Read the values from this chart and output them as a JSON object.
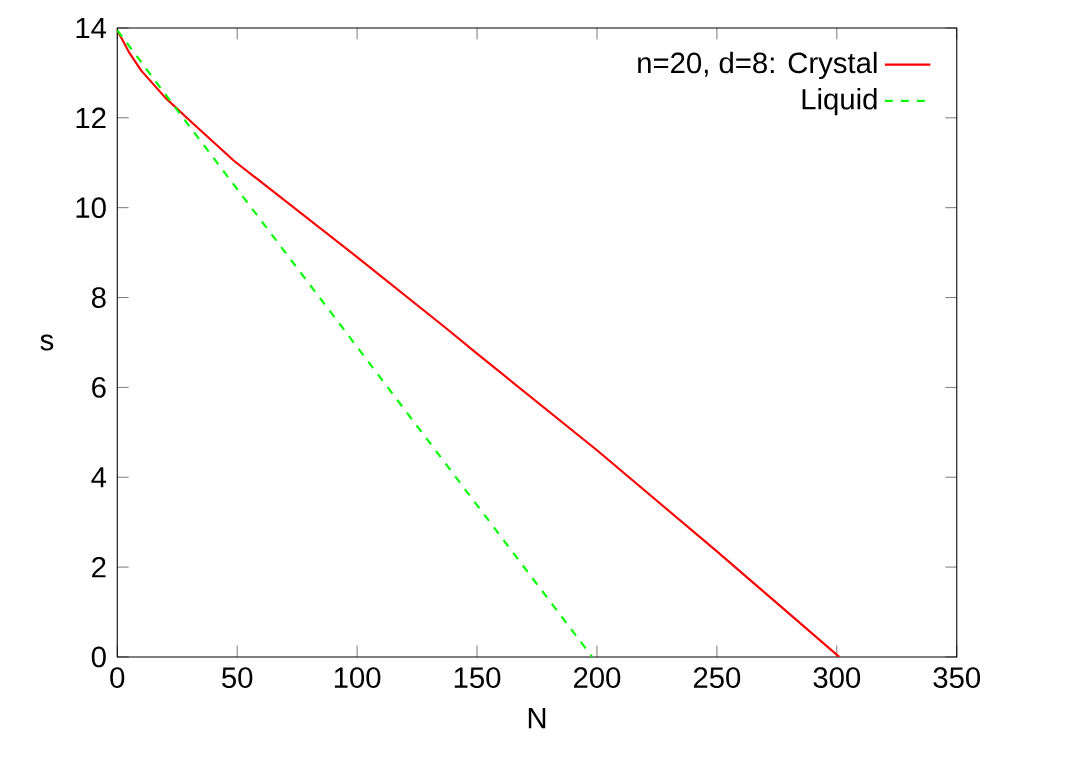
{
  "chart_data": {
    "type": "line",
    "xlabel": "N",
    "ylabel": "s",
    "xlim": [
      0,
      350
    ],
    "ylim": [
      0,
      14
    ],
    "xticks": [
      0,
      50,
      100,
      150,
      200,
      250,
      300,
      350
    ],
    "yticks": [
      0,
      2,
      4,
      6,
      8,
      10,
      12,
      14
    ],
    "grid": false,
    "legend": "top right",
    "marker": "none",
    "series": [
      {
        "name": "n=20, d=8: Crystal",
        "color": "#ff0000",
        "line_style": "solid",
        "x": [
          0,
          5,
          10,
          20,
          30,
          48.5,
          100,
          137.5,
          150,
          200,
          250,
          301
        ],
        "values": [
          13.95,
          13.45,
          13.05,
          12.45,
          11.95,
          11.05,
          8.9,
          7.3,
          6.75,
          4.6,
          2.35,
          0
        ]
      },
      {
        "name": "Liquid",
        "color": "#00ff00",
        "line_style": "dashed",
        "x": [
          0,
          26,
          94.3,
          198
        ],
        "values": [
          13.95,
          12.1,
          7.3,
          0
        ]
      }
    ]
  }
}
